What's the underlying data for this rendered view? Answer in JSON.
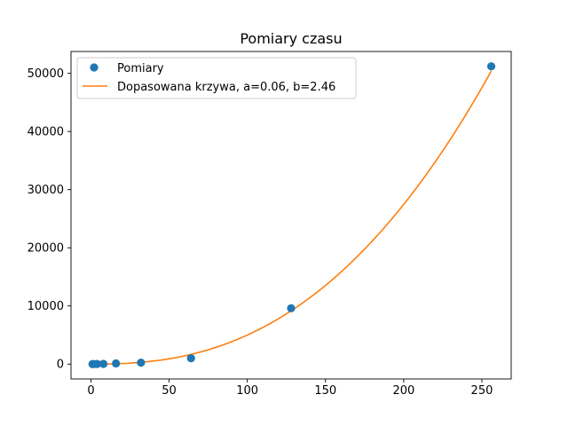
{
  "chart_data": {
    "type": "scatter",
    "title": "Pomiary czasu",
    "xlabel": "",
    "ylabel": "",
    "xlim": [
      -12.75,
      268.75
    ],
    "ylim": [
      -2560,
      53760
    ],
    "x_ticks": [
      0,
      50,
      100,
      150,
      200,
      250
    ],
    "y_ticks": [
      0,
      10000,
      20000,
      30000,
      40000,
      50000
    ],
    "x_tick_labels": [
      "0",
      "50",
      "100",
      "150",
      "200",
      "250"
    ],
    "y_tick_labels": [
      "0",
      "10000",
      "20000",
      "30000",
      "40000",
      "50000"
    ],
    "grid": false,
    "legend_position": "top-left",
    "series": [
      {
        "name": "Pomiary",
        "kind": "scatter",
        "color": "#1f77b4",
        "x": [
          1,
          2,
          4,
          8,
          16,
          32,
          64,
          128,
          256
        ],
        "y": [
          1,
          3,
          10,
          40,
          120,
          250,
          1000,
          9600,
          51200
        ]
      },
      {
        "name": "Dopasowana krzywa, a=0.06, b=2.46",
        "kind": "line",
        "color": "#ff7f0e",
        "a": 0.06,
        "b": 2.46,
        "x_range": [
          1,
          256
        ]
      }
    ]
  }
}
